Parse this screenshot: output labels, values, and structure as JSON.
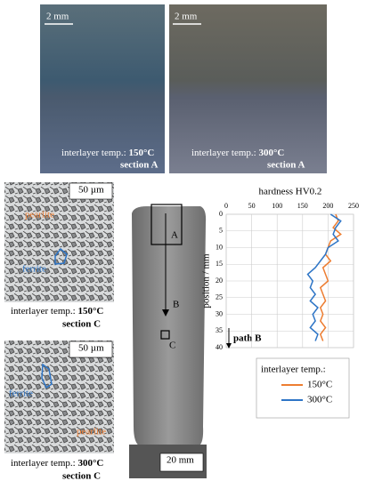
{
  "images": [
    {
      "scale": "2 mm",
      "label": "interlayer temp.:",
      "temp": "150°C",
      "section": "section A"
    },
    {
      "scale": "2 mm",
      "label": "interlayer temp.:",
      "temp": "300°C",
      "section": "section A"
    },
    {
      "scale": "50 µm",
      "phase1": "pearlite",
      "phase2": "ferrite",
      "label": "interlayer temp.:",
      "temp": "150°C",
      "section": "section C"
    },
    {
      "scale": "50 µm",
      "phase1": "ferrite",
      "phase2": "pearlite",
      "label": "interlayer temp.:",
      "temp": "300°C",
      "section": "section C"
    },
    {
      "marker_a": "A",
      "marker_b": "B",
      "marker_c": "C",
      "scale": "20 mm"
    }
  ],
  "chart_data": {
    "type": "line",
    "orientation": "horizontal",
    "title": "hardness HV0.2",
    "y_label": "position / mm",
    "annotation": "path B",
    "legend_title": "interlayer temp.:",
    "x": [
      0,
      2,
      4,
      6,
      8,
      10,
      12,
      14,
      16,
      18,
      20,
      22,
      24,
      26,
      28,
      30,
      32,
      34,
      36,
      38
    ],
    "series": [
      {
        "name": "150°C",
        "color": "#ed7d31",
        "values": [
          215,
          220,
          210,
          225,
          205,
          200,
          195,
          205,
          190,
          195,
          200,
          185,
          190,
          195,
          185,
          190,
          185,
          195,
          185,
          190
        ]
      },
      {
        "name": "300°C",
        "color": "#2e75c6",
        "values": [
          205,
          225,
          215,
          210,
          220,
          200,
          195,
          185,
          175,
          160,
          170,
          165,
          175,
          165,
          180,
          170,
          175,
          165,
          180,
          175
        ]
      }
    ],
    "xlim": [
      0,
      40
    ],
    "xticks": [
      0,
      5,
      10,
      15,
      20,
      25,
      30,
      35,
      40
    ],
    "ylim": [
      0,
      250
    ],
    "yticks": [
      0,
      50,
      100,
      150,
      200,
      250
    ],
    "grid": true
  }
}
